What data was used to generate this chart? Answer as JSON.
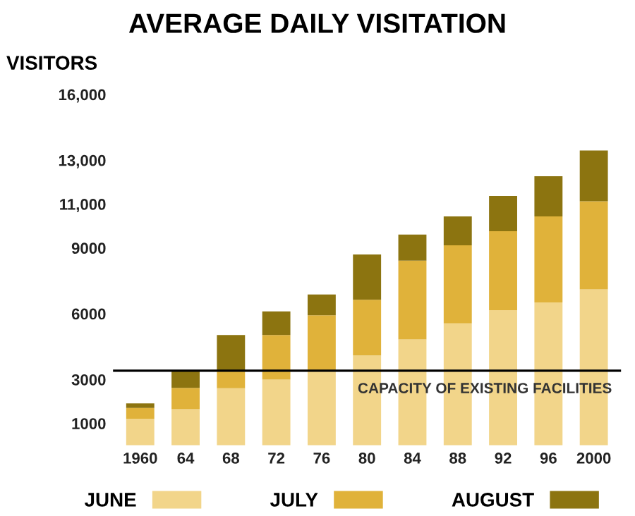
{
  "chart_data": {
    "type": "bar",
    "title": "AVERAGE DAILY VISITATION",
    "ylabel": "VISITORS",
    "stacked": true,
    "categories": [
      "1960",
      "64",
      "68",
      "72",
      "76",
      "80",
      "84",
      "88",
      "92",
      "96",
      "2000"
    ],
    "series": [
      {
        "name": "JUNE",
        "color": "#f2d58a",
        "values": [
          1210,
          1650,
          2600,
          3000,
          3370,
          4100,
          4830,
          5560,
          6160,
          6520,
          7110
        ]
      },
      {
        "name": "JULY",
        "color": "#e0b23a",
        "values": [
          490,
          970,
          820,
          2030,
          2560,
          2540,
          3590,
          3560,
          3600,
          3920,
          4020
        ]
      },
      {
        "name": "AUGUST",
        "color": "#8c7410",
        "values": [
          210,
          800,
          1610,
          1080,
          950,
          2060,
          1190,
          1320,
          1610,
          1830,
          2310
        ]
      }
    ],
    "ylim": [
      0,
      16000
    ],
    "yticks": [
      1000,
      3000,
      6000,
      9000,
      {
        "value": 11000,
        "label": "11,000"
      },
      {
        "value": 13000,
        "label": "13,000"
      },
      {
        "value": 16000,
        "label": "16,000"
      }
    ],
    "ref_lines": [
      {
        "axis": "y",
        "value": 3400,
        "label": "CAPACITY OF EXISTING FACILITIES",
        "color": "#000000"
      }
    ],
    "grid": false,
    "legend": "bottom"
  }
}
